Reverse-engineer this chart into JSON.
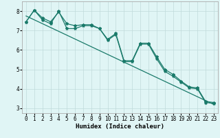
{
  "title": "",
  "xlabel": "Humidex (Indice chaleur)",
  "bg_color": "#e0f5f5",
  "grid_color": "#c0dada",
  "line_color": "#1a7a6a",
  "xlim": [
    -0.5,
    23.5
  ],
  "ylim": [
    2.75,
    8.5
  ],
  "yticks": [
    3,
    4,
    5,
    6,
    7,
    8
  ],
  "xticks": [
    0,
    1,
    2,
    3,
    4,
    5,
    6,
    7,
    8,
    9,
    10,
    11,
    12,
    13,
    14,
    15,
    16,
    17,
    18,
    19,
    20,
    21,
    22,
    23
  ],
  "series1_x": [
    0,
    1,
    2,
    3,
    4,
    5,
    6,
    7,
    8,
    9,
    10,
    11,
    12,
    13,
    14,
    15,
    16,
    17,
    18,
    19,
    20,
    21,
    22,
    23
  ],
  "series1_y": [
    7.45,
    8.05,
    7.65,
    7.45,
    7.95,
    7.35,
    7.25,
    7.3,
    7.3,
    7.1,
    6.55,
    6.85,
    5.45,
    5.45,
    6.35,
    6.35,
    5.65,
    5.0,
    4.75,
    4.4,
    4.1,
    4.05,
    3.35,
    3.3
  ],
  "series2_x": [
    0,
    1,
    2,
    3,
    4,
    5,
    6,
    7,
    8,
    9,
    10,
    11,
    12,
    13,
    14,
    15,
    16,
    17,
    18,
    19,
    20,
    21,
    22,
    23
  ],
  "series2_y": [
    7.45,
    8.05,
    7.55,
    7.35,
    8.0,
    7.1,
    7.1,
    7.25,
    7.25,
    7.1,
    6.5,
    6.8,
    5.4,
    5.4,
    6.3,
    6.3,
    5.55,
    4.9,
    4.65,
    4.35,
    4.05,
    4.0,
    3.3,
    3.25
  ],
  "trend_x": [
    0,
    23
  ],
  "trend_y": [
    7.75,
    3.2
  ],
  "marker_size": 3.0,
  "linewidth": 0.9,
  "tick_fontsize": 5.5,
  "label_fontsize": 6.5
}
